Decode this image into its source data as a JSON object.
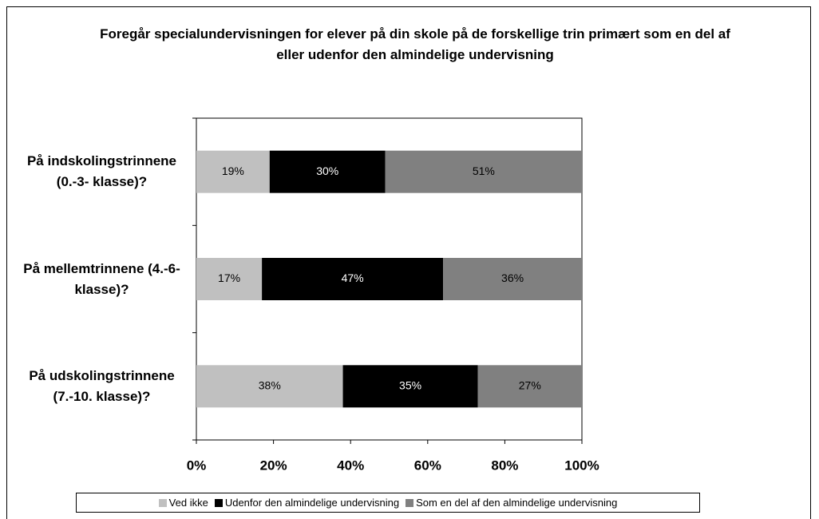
{
  "chart_data": {
    "type": "stacked_bar_horizontal",
    "title": "Foregår specialundervisningen for elever på din skole på de forskellige trin primært som en del af eller udenfor den almindelige undervisning",
    "categories": [
      "På indskolingstrinnene (0.-3- klasse)?",
      "På mellemtrinnene (4.-6- klasse)?",
      "På udskolingstrinnene (7.-10. klasse)?"
    ],
    "series": [
      {
        "name": "Ved ikke",
        "color": "#c0c0c0",
        "values": [
          19,
          17,
          38
        ],
        "value_labels": [
          "19%",
          "17%",
          "38%"
        ]
      },
      {
        "name": "Udenfor den almindelige undervisning",
        "color": "#000000",
        "values": [
          30,
          47,
          35
        ],
        "value_labels": [
          "30%",
          "47%",
          "35%"
        ]
      },
      {
        "name": "Som en del af den almindelige undervisning",
        "color": "#808080",
        "values": [
          51,
          36,
          27
        ],
        "value_labels": [
          "51%",
          "36%",
          "27%"
        ]
      }
    ],
    "xlim": [
      0,
      100
    ],
    "xticks": [
      {
        "value": 0,
        "label": "0%"
      },
      {
        "value": 20,
        "label": "20%"
      },
      {
        "value": 40,
        "label": "40%"
      },
      {
        "value": 60,
        "label": "60%"
      },
      {
        "value": 80,
        "label": "80%"
      },
      {
        "value": 100,
        "label": "100%"
      }
    ],
    "grid": false,
    "legend": "bottom"
  }
}
